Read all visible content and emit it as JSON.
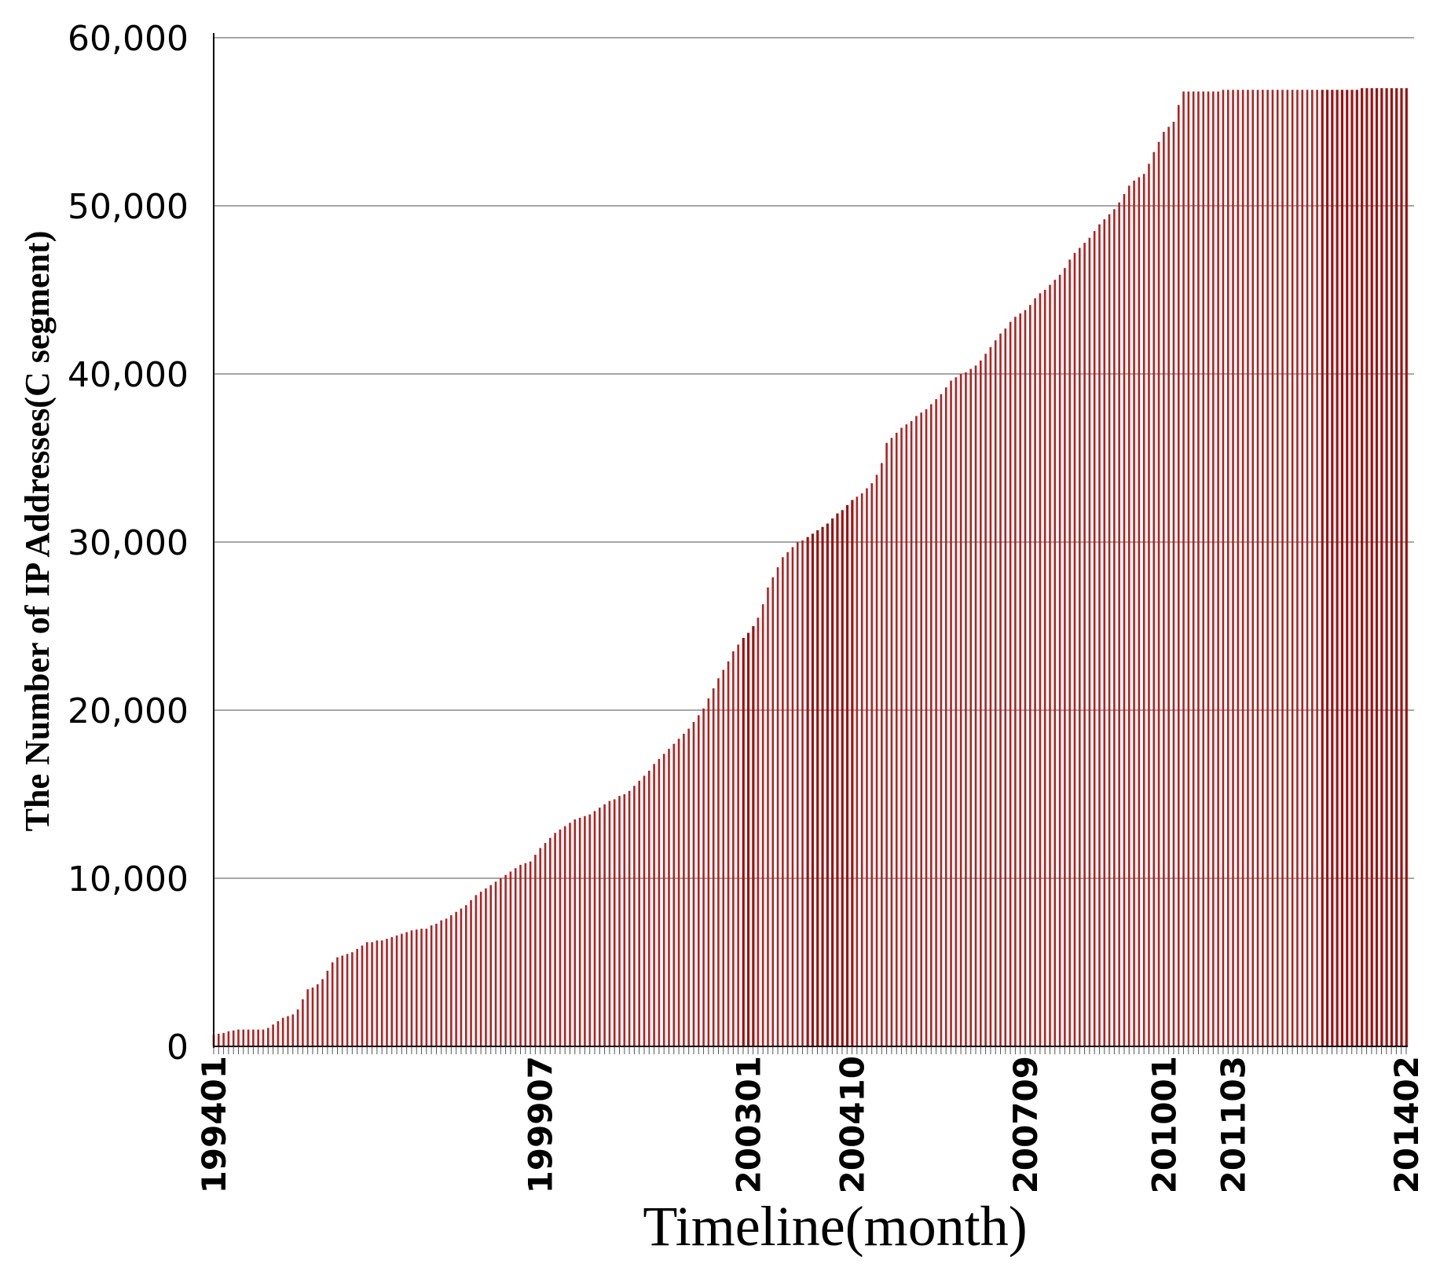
{
  "chart_data": {
    "type": "bar",
    "title": "",
    "xlabel": "Timeline(month)",
    "ylabel": "The Number of IP Addresses(C segment)",
    "ylim": [
      0,
      60000
    ],
    "yticks": [
      "0",
      "10,000",
      "20,000",
      "30,000",
      "40,000",
      "50,000",
      "60,000"
    ],
    "ytick_values": [
      0,
      10000,
      20000,
      30000,
      40000,
      50000,
      60000
    ],
    "xtick_labels": [
      "199401",
      "199907",
      "200301",
      "200410",
      "200709",
      "201001",
      "201103",
      "201402"
    ],
    "x_start": "1994-01",
    "x_end": "2014-02",
    "grid": "horizontal",
    "bar_color": "#b22222",
    "series": [
      {
        "values": [
          700,
          750,
          800,
          900,
          950,
          1000,
          1000,
          1000,
          1000,
          1000,
          1000,
          1100,
          1300,
          1500,
          1700,
          1800,
          1900,
          2200,
          2800,
          3400,
          3500,
          3700,
          4000,
          4500,
          5000,
          5300,
          5400,
          5500,
          5600,
          5800,
          6000,
          6200,
          6200,
          6300,
          6300,
          6400,
          6500,
          6600,
          6700,
          6800,
          6900,
          6950,
          7000,
          7000,
          7200,
          7300,
          7500,
          7600,
          7800,
          8000,
          8200,
          8400,
          8700,
          9000,
          9200,
          9400,
          9600,
          9800,
          10000,
          10200,
          10400,
          10600,
          10800,
          10900,
          11000,
          11400,
          11800,
          12100,
          12400,
          12700,
          12900,
          13100,
          13300,
          13500,
          13600,
          13700,
          13800,
          14000,
          14200,
          14400,
          14600,
          14700,
          14900,
          15000,
          15200,
          15500,
          15800,
          16100,
          16400,
          16800,
          17100,
          17400,
          17700,
          18000,
          18300,
          18600,
          18900,
          19300,
          19700,
          20100,
          20700,
          21300,
          21900,
          22400,
          22900,
          23500,
          23900,
          24300,
          24600,
          25000,
          25500,
          26300,
          27300,
          27900,
          28500,
          29100,
          29400,
          29700,
          30000,
          30100,
          30300,
          30500,
          30700,
          30900,
          31100,
          31400,
          31700,
          31900,
          32200,
          32500,
          32700,
          32900,
          33200,
          33500,
          34000,
          34700,
          35900,
          36200,
          36500,
          36800,
          37000,
          37200,
          37500,
          37700,
          37900,
          38200,
          38500,
          38800,
          39200,
          39600,
          39800,
          40000,
          40100,
          40300,
          40500,
          40800,
          41200,
          41600,
          42000,
          42400,
          42700,
          43100,
          43400,
          43600,
          43800,
          44100,
          44500,
          44800,
          45000,
          45300,
          45600,
          45900,
          46300,
          46800,
          47200,
          47500,
          47800,
          48100,
          48500,
          48900,
          49200,
          49500,
          49800,
          50200,
          50700,
          51200,
          51500,
          51700,
          51900,
          52500,
          53200,
          53800,
          54400,
          54700,
          55000,
          56000,
          56800,
          56800,
          56800,
          56800,
          56800,
          56800,
          56800,
          56800,
          56900,
          56900,
          56900,
          56900,
          56900,
          56900,
          56900,
          56900,
          56900,
          56900,
          56900,
          56900,
          56900,
          56900,
          56900,
          56900,
          56900,
          56900,
          56900,
          56900,
          56900,
          56900,
          56900,
          56900,
          56900,
          56900,
          56900,
          56900,
          57000,
          57000,
          57000,
          57000,
          57000,
          57000,
          57000,
          57000,
          57000,
          57000
        ]
      }
    ]
  }
}
